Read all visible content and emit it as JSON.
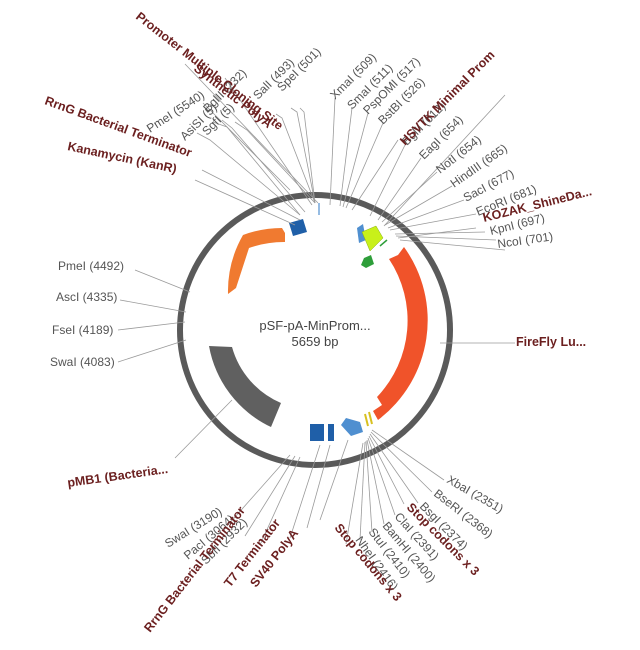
{
  "plasmid": {
    "name": "pSF-pA-MinProm...",
    "size": "5659 bp"
  },
  "site_labels": {
    "spei": "SpeI (501)",
    "sall": "SalI (493)",
    "bglii_232": "BglII (232)",
    "sgfi": "SgfI (5)",
    "asisi": "AsiSI (5)",
    "pmei_5540": "PmeI (5540)",
    "xmai": "XmaI (509)",
    "smai": "SmaI (511)",
    "pspomi": "PspOMI (517)",
    "bstbi": "BstBI (526)",
    "bglii_612": "BglII (612)",
    "eagi": "EagI (654)",
    "noti": "NotI (654)",
    "hindiii": "HindIII (665)",
    "saci": "SacI (677)",
    "ecori": "EcoRI (681)",
    "kpni": "KpnI (697)",
    "ncoi": "NcoI (701)",
    "pmei_4492": "PmeI (4492)",
    "asci": "AscI (4335)",
    "fsei": "FseI (4189)",
    "swai_4083": "SwaI (4083)",
    "xbai": "XbaI (2351)",
    "bseri": "BseRI (2368)",
    "bsgi": "BsgI (2374)",
    "clai": "ClaI (2391)",
    "bamhi": "BamHI (2400)",
    "stui": "StuI (2410)",
    "nhei": "NheI (2416)",
    "swai_3190": "SwaI (3190)",
    "paci": "PacI (3064)",
    "sbfi": "SbfI (2932)"
  },
  "feature_labels": {
    "promoter_mcs": "Promoter Multiple Cloning Site",
    "synthetic_polya": "Synthetic PolyA",
    "rrng_top": "RrnG Bacterial Terminator",
    "kanamycin": "Kanamycin (KanR)",
    "hsvtk": "HSVTK Minimal Prom",
    "kozak": "KOZAK_ShineDa...",
    "firefly": "FireFly Lu...",
    "pmb1": "pMB1 (Bacteria...",
    "stop_codons_1": "Stop codons x 3",
    "stop_codons_2": "Stop codons x 3",
    "sv40": "SV40 PolyA",
    "t7": "T7 Terminator",
    "rrng_bottom": "RrnG Bacterial Terminator"
  },
  "colors": {
    "backbone": "#5a5a5a",
    "firefly": "#f0532a",
    "kanamycin": "#f07a30",
    "pmb1": "#606060",
    "terminator": "#1f5fa8",
    "polya": "#4f8fd0",
    "hsvtk_promoter": "#c8f01a",
    "kozak": "#2e9e3a",
    "stop_codon": "#d8c020",
    "feature_text": "#6b1f1f",
    "site_text": "#555555"
  }
}
